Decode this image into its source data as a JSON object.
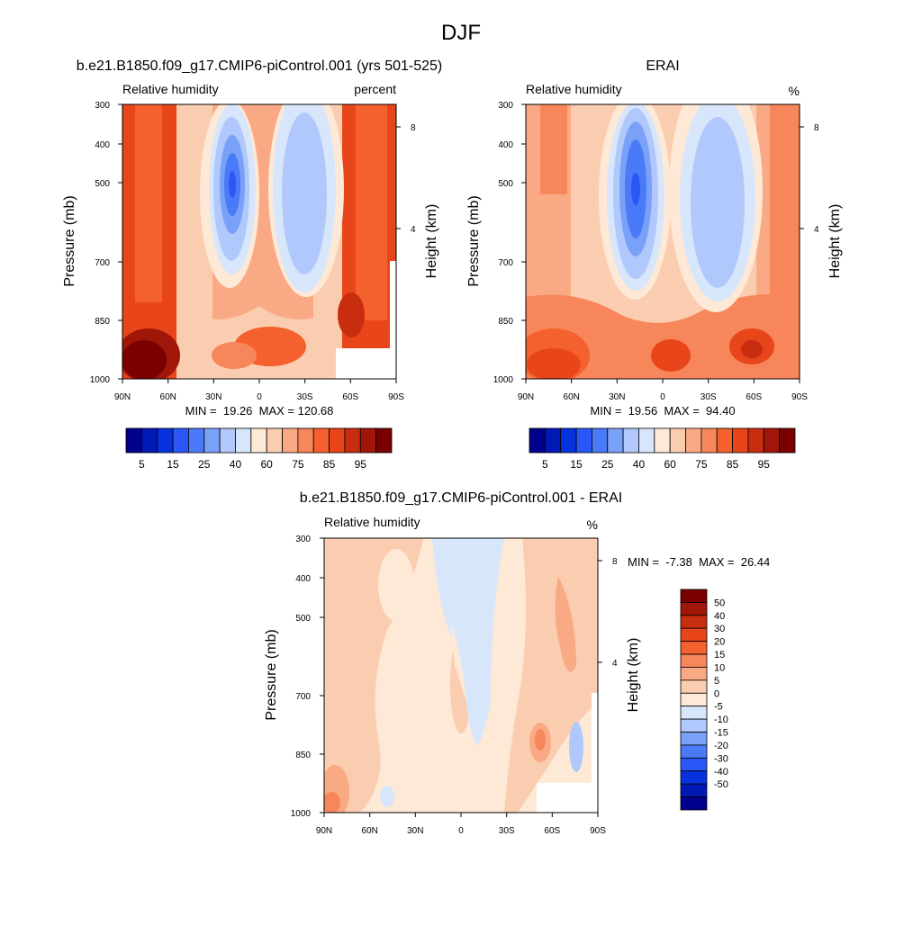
{
  "figure": {
    "title": "DJF"
  },
  "colors": {
    "abs": [
      "#00008c",
      "#0018b4",
      "#0632de",
      "#2a57f5",
      "#4a7af7",
      "#7aa1f8",
      "#b0c8fb",
      "#d8e6fb",
      "#fde9d6",
      "#fbcdb0",
      "#f9aa84",
      "#f7865a",
      "#f4612e",
      "#e8451b",
      "#c82d10",
      "#a01608",
      "#7a0000"
    ],
    "diff": [
      "#00008c",
      "#0018b4",
      "#0632de",
      "#2a57f5",
      "#4a7af7",
      "#7aa1f8",
      "#b0c8fb",
      "#d8e6fb",
      "#fde9d6",
      "#fbcdb0",
      "#f9aa84",
      "#f7865a",
      "#f4612e",
      "#e8451b",
      "#c82d10",
      "#a01608",
      "#7a0000"
    ]
  },
  "chart_data": [
    {
      "type": "heatmap",
      "title": "b.e21.B1850.f09_g17.CMIP6-piControl.001 (yrs 501-525)",
      "left_label": "Relative humidity",
      "right_label": "percent",
      "ylabel": "Pressure (mb)",
      "ylabel_right": "Height (km)",
      "x_ticks": [
        "90N",
        "60N",
        "30N",
        "0",
        "30S",
        "60S",
        "90S"
      ],
      "y_ticks": [
        "300",
        "400",
        "500",
        "700",
        "850",
        "1000"
      ],
      "y_right_ticks": [
        "8",
        "4"
      ],
      "stats": "MIN =  19.26  MAX = 120.68",
      "colorbar_labels": [
        "5",
        "15",
        "25",
        "40",
        "60",
        "75",
        "85",
        "95"
      ]
    },
    {
      "type": "heatmap",
      "title": "ERAI",
      "left_label": "Relative humidity",
      "right_label": "%",
      "ylabel": "Pressure (mb)",
      "ylabel_right": "Height (km)",
      "x_ticks": [
        "90N",
        "60N",
        "30N",
        "0",
        "30S",
        "60S",
        "90S"
      ],
      "y_ticks": [
        "300",
        "400",
        "500",
        "700",
        "850",
        "1000"
      ],
      "y_right_ticks": [
        "8",
        "4"
      ],
      "stats": "MIN =  19.56  MAX =  94.40",
      "colorbar_labels": [
        "5",
        "15",
        "25",
        "40",
        "60",
        "75",
        "85",
        "95"
      ]
    },
    {
      "type": "heatmap",
      "title": "b.e21.B1850.f09_g17.CMIP6-piControl.001 - ERAI",
      "left_label": "Relative humidity",
      "right_label": "%",
      "ylabel": "Pressure (mb)",
      "ylabel_right": "Height (km)",
      "x_ticks": [
        "90N",
        "60N",
        "30N",
        "0",
        "30S",
        "60S",
        "90S"
      ],
      "y_ticks": [
        "300",
        "400",
        "500",
        "700",
        "850",
        "1000"
      ],
      "y_right_ticks": [
        "8",
        "4"
      ],
      "stats": "MIN =  -7.38  MAX =  26.44",
      "colorbar_labels": [
        "50",
        "40",
        "30",
        "20",
        "15",
        "10",
        "5",
        "0",
        "-5",
        "-10",
        "-15",
        "-20",
        "-30",
        "-40",
        "-50"
      ]
    }
  ]
}
